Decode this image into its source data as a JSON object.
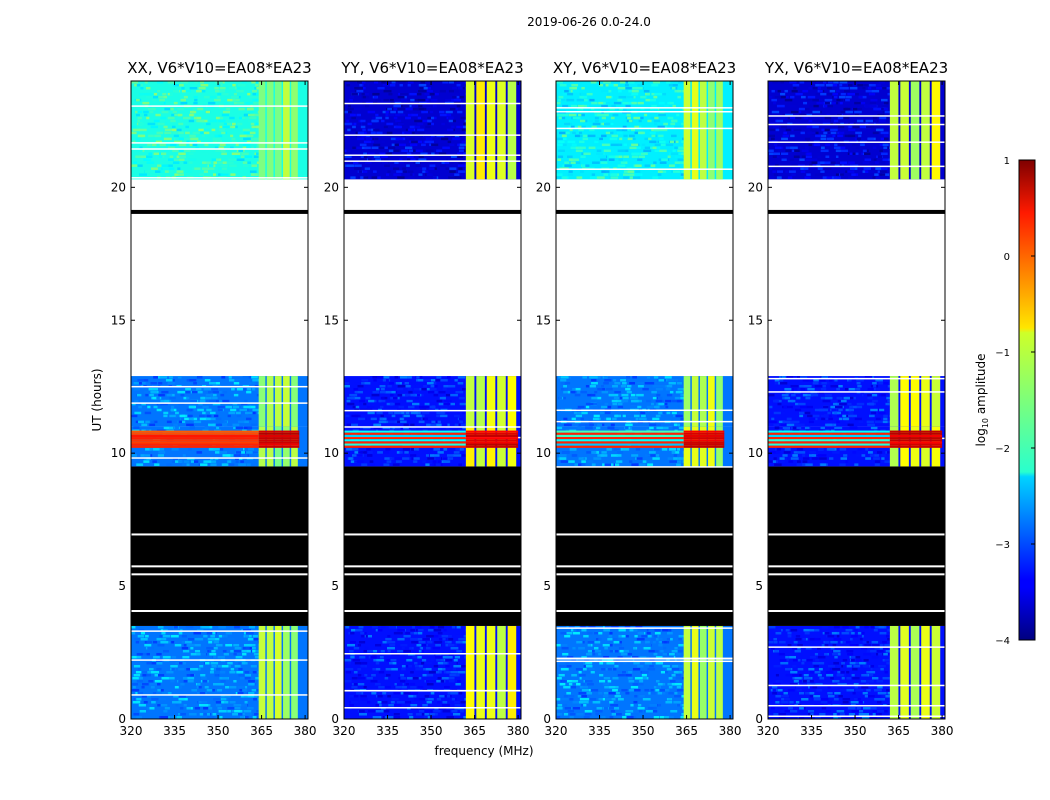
{
  "figure": {
    "suptitle": "2019-06-26 0.0-24.0",
    "xlabel": "frequency (MHz)",
    "ylabel": "UT (hours)"
  },
  "chart_data": {
    "type": "heatmap",
    "title": "2019-06-26 0.0-24.0",
    "xlabel": "frequency (MHz)",
    "ylabel": "UT (hours)",
    "xlim": [
      320,
      381
    ],
    "ylim": [
      0,
      24
    ],
    "x_ticks": [
      320,
      335,
      350,
      365,
      380
    ],
    "y_ticks": [
      0,
      5,
      10,
      15,
      20
    ],
    "colorbar": {
      "label": "log10 amplitude",
      "label_base": "log",
      "label_sub": "10",
      "label_rest": " amplitude",
      "range": [
        -4,
        1
      ],
      "ticks": [
        1,
        0,
        -1,
        -2,
        -3,
        -4
      ],
      "tick_labels": [
        "1",
        "0",
        "−1",
        "−2",
        "−3",
        "−4"
      ],
      "colormap": "jet"
    },
    "time_blocks": [
      {
        "start": 0.0,
        "end": 3.5,
        "state": "data",
        "level": -2.7
      },
      {
        "start": 3.5,
        "end": 9.5,
        "state": "flagged_black"
      },
      {
        "start": 9.5,
        "end": 11.0,
        "state": "data",
        "level": -2.2
      },
      {
        "start": 10.2,
        "end": 10.85,
        "state": "bright_event",
        "level": 0.2
      },
      {
        "start": 11.0,
        "end": 12.9,
        "state": "data",
        "level": -2.7
      },
      {
        "start": 12.9,
        "end": 19.0,
        "state": "no_data"
      },
      {
        "start": 19.0,
        "end": 19.15,
        "state": "flagged_black"
      },
      {
        "start": 19.15,
        "end": 20.3,
        "state": "no_data"
      },
      {
        "start": 20.3,
        "end": 24.0,
        "state": "data",
        "level": -2.7
      }
    ],
    "panels": [
      {
        "name": "XX",
        "title": "XX, V6*V10=EA08*EA23",
        "rfi_band_mhz": [
          364,
          378
        ],
        "rfi_level": -1.3,
        "background_level": -2.8,
        "top_band_level": -2.0
      },
      {
        "name": "YY",
        "title": "YY, V6*V10=EA08*EA23",
        "rfi_band_mhz": [
          362,
          380
        ],
        "rfi_level": -1.0,
        "background_level": -3.3,
        "top_band_level": -3.6
      },
      {
        "name": "XY",
        "title": "XY, V6*V10=EA08*EA23",
        "rfi_band_mhz": [
          364,
          378
        ],
        "rfi_level": -1.2,
        "background_level": -2.8,
        "top_band_level": -2.2
      },
      {
        "name": "YX",
        "title": "YX, V6*V10=EA08*EA23",
        "rfi_band_mhz": [
          362,
          380
        ],
        "rfi_level": -1.1,
        "background_level": -3.3,
        "top_band_level": -3.6
      }
    ],
    "colors": {
      "flagged": "#000000",
      "no_data": "#ffffff",
      "axis": "#000000"
    }
  }
}
